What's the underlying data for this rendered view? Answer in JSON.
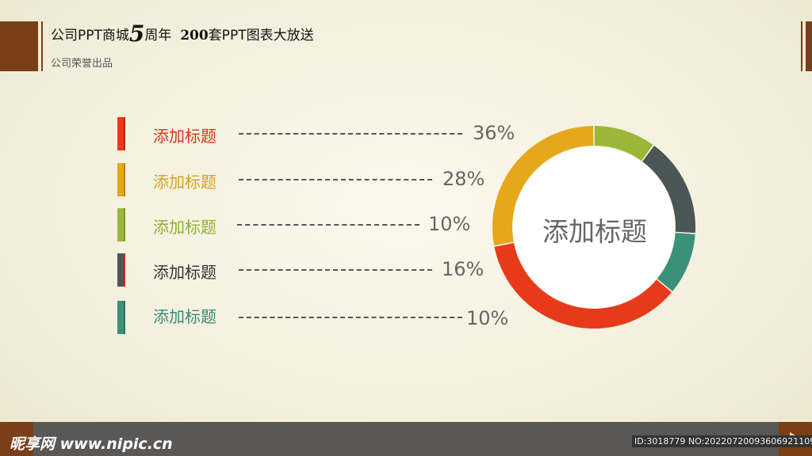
{
  "header": {
    "title_part1": "公司PPT商城",
    "title_big": "5",
    "title_part2": "周年",
    "title_number": "200",
    "title_part3": "套PPT图表大放送",
    "subtitle": "公司荣誉出品"
  },
  "chart_data": {
    "type": "pie",
    "donut": true,
    "center_label": "添加标题",
    "items": [
      {
        "label": "添加标题",
        "value": 36,
        "value_label": "36%",
        "color": "#e8391b"
      },
      {
        "label": "添加标题",
        "value": 28,
        "value_label": "28%",
        "color": "#e5a81a"
      },
      {
        "label": "添加标题",
        "value": 10,
        "value_label": "10%",
        "color": "#9bb73a"
      },
      {
        "label": "添加标题",
        "value": 16,
        "value_label": "16%",
        "color": "#4b5757"
      },
      {
        "label": "添加标题",
        "value": 10,
        "value_label": "10%",
        "color": "#3a9079"
      }
    ]
  },
  "footer": {
    "logo_text": "昵享网 www.nipic.cn",
    "id_text": "ID:3018779 NO:20220720093606921109",
    "next_icon": "triangle-right-icon"
  },
  "colors": {
    "brand_brown": "#7a3f16",
    "footer_gray": "#5a5857"
  }
}
